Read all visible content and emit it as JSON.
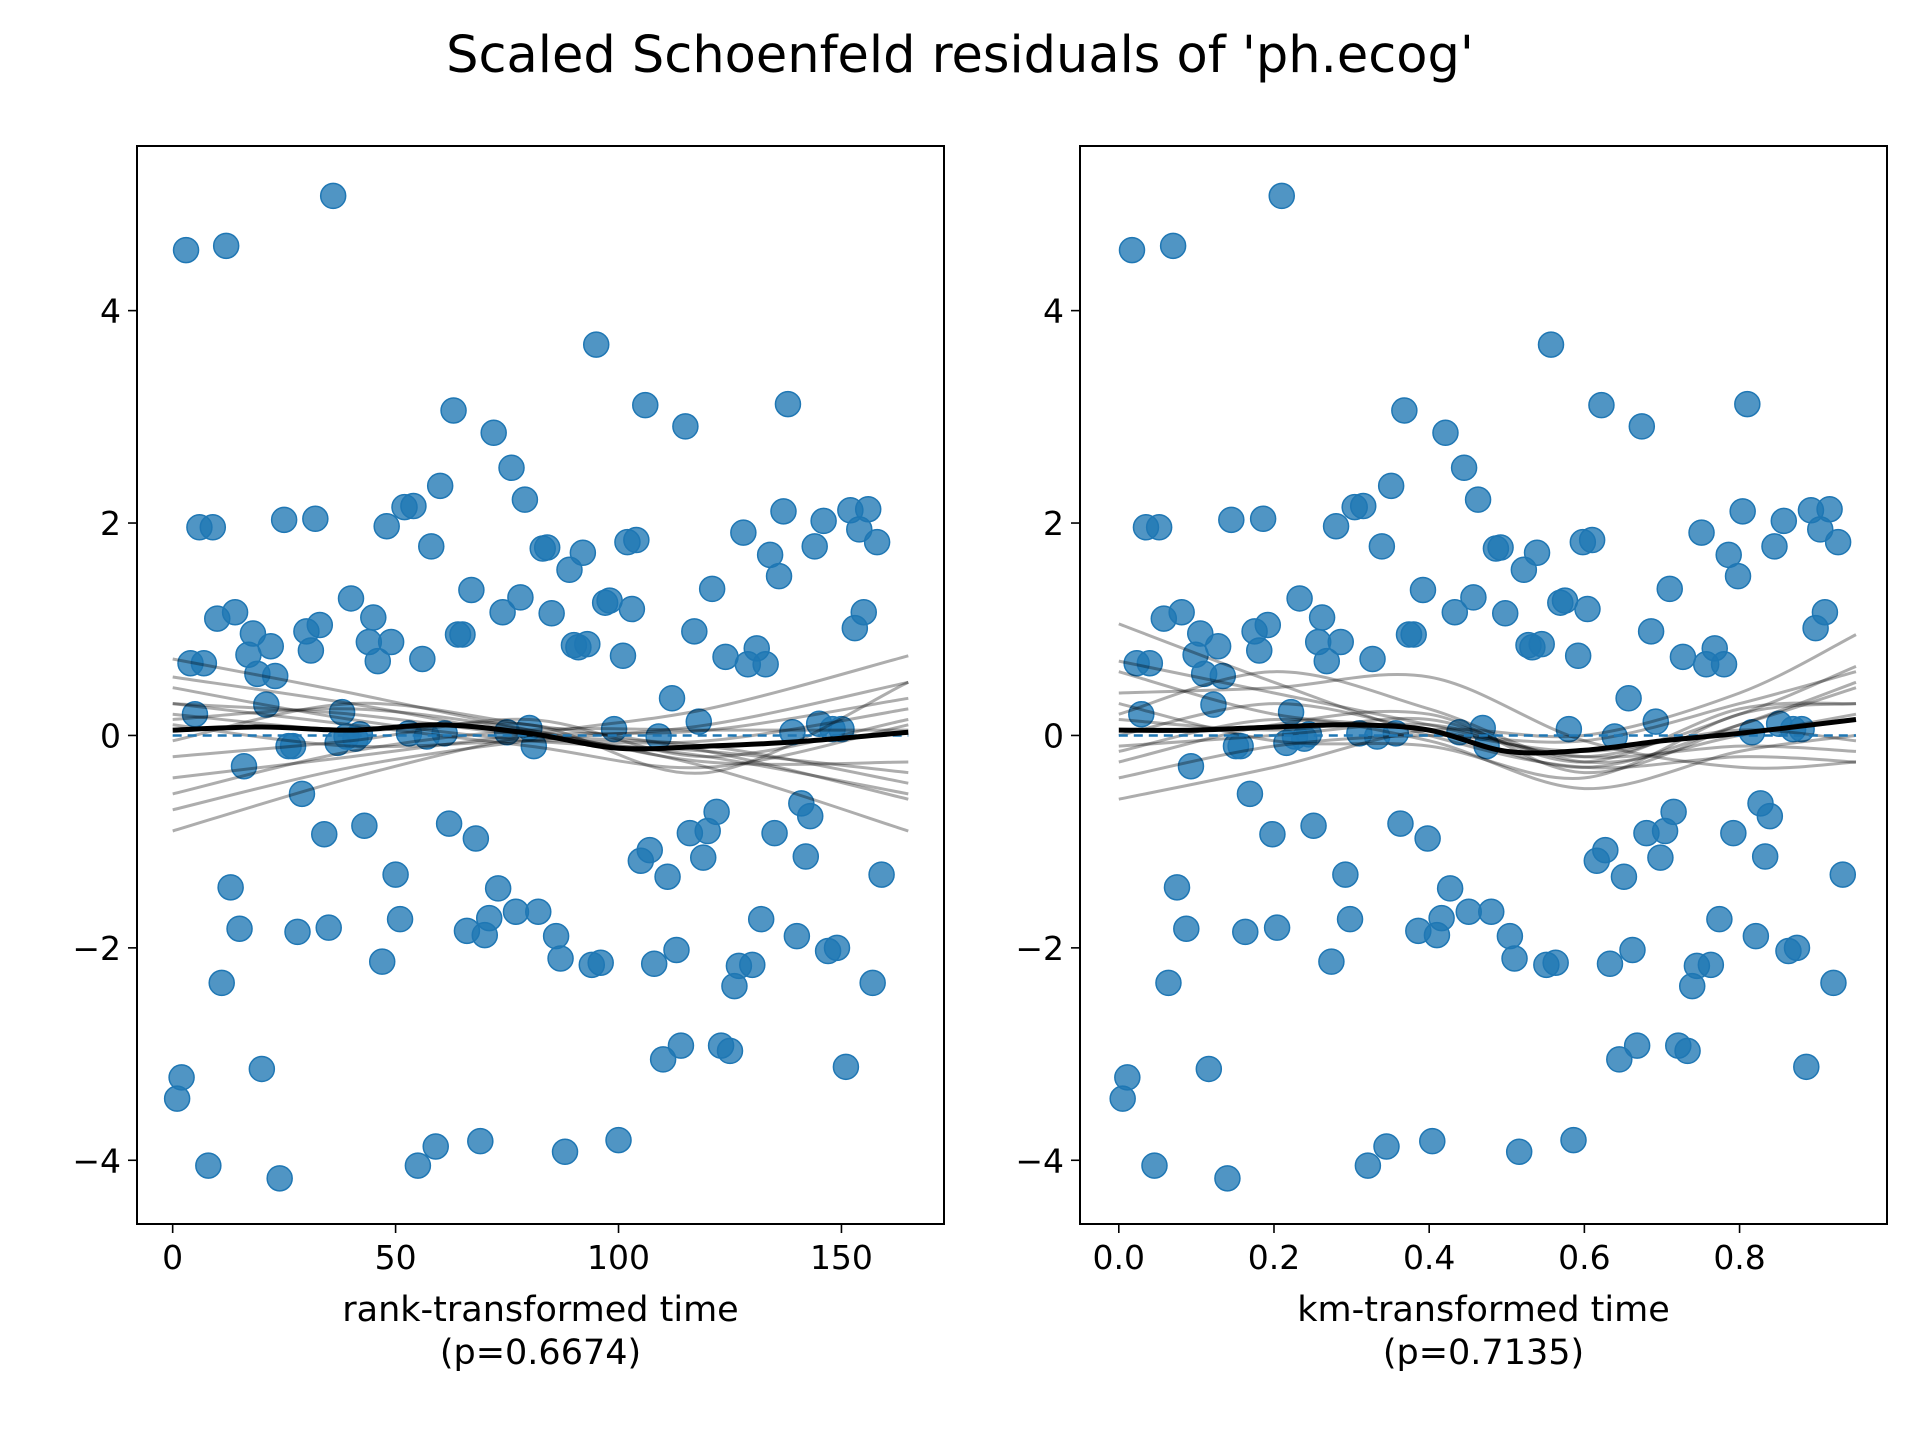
{
  "title": "Scaled Schoenfeld residuals of 'ph.ecog'",
  "residuals": [
    -3.42,
    -3.22,
    4.57,
    0.68,
    0.2,
    1.96,
    0.68,
    -4.05,
    1.96,
    1.1,
    -2.33,
    4.61,
    -1.43,
    1.16,
    -1.82,
    -0.29,
    0.76,
    0.96,
    0.58,
    -3.14,
    0.29,
    0.84,
    0.56,
    -4.17,
    2.03,
    -0.1,
    -0.1,
    -1.85,
    -0.55,
    0.98,
    0.8,
    2.04,
    1.04,
    -0.93,
    -1.81,
    5.08,
    -0.07,
    0.22,
    -0.01,
    1.29,
    -0.03,
    0.01,
    -0.85,
    0.88,
    1.11,
    0.7,
    -2.13,
    1.97,
    0.88,
    -1.31,
    -1.73,
    2.15,
    0.02,
    2.16,
    -4.05,
    0.72,
    -0.01,
    1.78,
    -3.87,
    2.35,
    0.02,
    -0.83,
    3.06,
    0.95,
    0.95,
    -1.84,
    1.37,
    -0.97,
    -3.82,
    -1.88,
    -1.72,
    2.85,
    -1.44,
    1.16,
    0.03,
    2.52,
    -1.66,
    1.3,
    2.22,
    0.07,
    -0.1,
    -1.66,
    1.76,
    1.77,
    1.15,
    -1.89,
    -2.1,
    -3.92,
    1.56,
    0.85,
    0.83,
    1.72,
    0.86,
    -2.16,
    3.68,
    -2.14,
    1.25,
    1.27,
    0.06,
    -3.81,
    0.75,
    1.82,
    1.19,
    1.84,
    -1.18,
    3.11,
    -1.08,
    -2.15,
    -0.01,
    -3.05,
    -1.33,
    0.35,
    -2.02,
    -2.92,
    2.91,
    -0.92,
    0.98,
    0.13,
    -1.15,
    -0.9,
    1.38,
    -0.72,
    -2.92,
    0.74,
    -2.97,
    -2.36,
    -2.17,
    1.91,
    0.67,
    -2.16,
    0.82,
    -1.73,
    0.67,
    1.7,
    -0.92,
    1.5,
    2.11,
    3.12,
    0.03,
    -1.89,
    -0.64,
    -1.14,
    -0.76,
    1.78,
    0.11,
    2.02,
    -2.03,
    0.06,
    -2.0,
    0.06,
    -3.12,
    2.12,
    1.01,
    1.94,
    1.16,
    2.13,
    -2.33,
    1.82,
    -1.31
  ],
  "chart_data": [
    {
      "type": "scatter",
      "xlabel": "rank-transformed time",
      "p_label": "(p=0.6674)",
      "xlim": [
        -8,
        173
      ],
      "ylim": [
        -4.6,
        5.55
      ],
      "xticks": [
        0,
        50,
        100,
        150
      ],
      "xtick_labels": [
        "0",
        "50",
        "100",
        "150"
      ],
      "yticks": [
        -4,
        -2,
        0,
        2,
        4
      ],
      "ytick_labels": [
        "−4",
        "−2",
        "0",
        "2",
        "4"
      ],
      "x": [
        1,
        2,
        3,
        4,
        5,
        6,
        7,
        8,
        9,
        10,
        11,
        12,
        13,
        14,
        15,
        16,
        17,
        18,
        19,
        20,
        21,
        22,
        23,
        24,
        25,
        26,
        27,
        28,
        29,
        30,
        31,
        32,
        33,
        34,
        35,
        36,
        37,
        38,
        39,
        40,
        41,
        42,
        43,
        44,
        45,
        46,
        47,
        48,
        49,
        50,
        51,
        52,
        53,
        54,
        55,
        56,
        57,
        58,
        59,
        60,
        61,
        62,
        63,
        64,
        65,
        66,
        67,
        68,
        69,
        70,
        71,
        72,
        73,
        74,
        75,
        76,
        77,
        78,
        79,
        80,
        81,
        82,
        83,
        84,
        85,
        86,
        87,
        88,
        89,
        90,
        91,
        92,
        93,
        94,
        95,
        96,
        97,
        98,
        99,
        100,
        101,
        102,
        103,
        104,
        105,
        106,
        107,
        108,
        109,
        110,
        111,
        112,
        113,
        114,
        115,
        116,
        117,
        118,
        119,
        120,
        121,
        122,
        123,
        124,
        125,
        126,
        127,
        128,
        129,
        130,
        131,
        132,
        133,
        134,
        135,
        136,
        137,
        138,
        139,
        140,
        141,
        142,
        143,
        144,
        145,
        146,
        147,
        148,
        149,
        150,
        151,
        152,
        153,
        154,
        155,
        156,
        157,
        158,
        159,
        160,
        161,
        162,
        163,
        164,
        165
      ],
      "fit": {
        "x": [
          0,
          20,
          40,
          60,
          80,
          100,
          120,
          140,
          165
        ],
        "y": [
          0.05,
          0.08,
          0.05,
          0.1,
          0.02,
          -0.12,
          -0.1,
          -0.06,
          0.03
        ]
      },
      "reference_y": 0,
      "bootstrap": [
        {
          "x": [
            0,
            40,
            80,
            120,
            165
          ],
          "y": [
            0.72,
            0.4,
            0.05,
            -0.3,
            -0.9
          ]
        },
        {
          "x": [
            0,
            40,
            80,
            120,
            165
          ],
          "y": [
            -0.9,
            -0.4,
            0.0,
            0.25,
            0.75
          ]
        },
        {
          "x": [
            0,
            40,
            80,
            120,
            165
          ],
          "y": [
            0.55,
            0.3,
            0.0,
            -0.2,
            -0.55
          ]
        },
        {
          "x": [
            0,
            40,
            80,
            120,
            165
          ],
          "y": [
            -0.7,
            -0.3,
            -0.05,
            0.1,
            0.5
          ]
        },
        {
          "x": [
            0,
            40,
            80,
            120,
            165
          ],
          "y": [
            0.3,
            0.2,
            0.0,
            -0.1,
            -0.45
          ]
        },
        {
          "x": [
            0,
            40,
            80,
            120,
            165
          ],
          "y": [
            -0.4,
            -0.2,
            0.0,
            0.05,
            0.35
          ]
        },
        {
          "x": [
            0,
            40,
            80,
            120,
            165
          ],
          "y": [
            0.15,
            0.25,
            0.05,
            -0.25,
            -0.25
          ]
        },
        {
          "x": [
            0,
            40,
            80,
            120,
            165
          ],
          "y": [
            -0.2,
            -0.05,
            0.15,
            -0.2,
            0.15
          ]
        },
        {
          "x": [
            0,
            40,
            80,
            120,
            165
          ],
          "y": [
            0.3,
            0.1,
            -0.1,
            -0.3,
            0.1
          ]
        },
        {
          "x": [
            0,
            40,
            80,
            120,
            165
          ],
          "y": [
            -0.05,
            0.3,
            0.1,
            -0.15,
            -0.6
          ]
        },
        {
          "x": [
            0,
            40,
            80,
            120,
            165
          ],
          "y": [
            0.1,
            -0.1,
            -0.05,
            -0.05,
            0.25
          ]
        },
        {
          "x": [
            0,
            40,
            80,
            120,
            165
          ],
          "y": [
            0.45,
            0.15,
            -0.05,
            -0.15,
            -0.35
          ]
        },
        {
          "x": [
            0,
            40,
            80,
            120,
            165
          ],
          "y": [
            -0.55,
            -0.15,
            0.05,
            0.05,
            0.05
          ]
        },
        {
          "x": [
            0,
            40,
            80,
            120,
            165
          ],
          "y": [
            0.2,
            0.05,
            0.1,
            -0.35,
            0.5
          ]
        }
      ]
    },
    {
      "type": "scatter",
      "xlabel": "km-transformed time",
      "p_label": "(p=0.7135)",
      "xlim": [
        -0.05,
        0.99
      ],
      "ylim": [
        -4.6,
        5.55
      ],
      "xticks": [
        0.0,
        0.2,
        0.4,
        0.6,
        0.8
      ],
      "xtick_labels": [
        "0.0",
        "0.2",
        "0.4",
        "0.6",
        "0.8"
      ],
      "yticks": [
        -4,
        -2,
        0,
        2,
        4
      ],
      "ytick_labels": [
        "−4",
        "−2",
        "0",
        "2",
        "4"
      ],
      "x": [
        0.005,
        0.011,
        0.017,
        0.023,
        0.029,
        0.035,
        0.04,
        0.046,
        0.052,
        0.058,
        0.064,
        0.07,
        0.075,
        0.081,
        0.087,
        0.093,
        0.099,
        0.105,
        0.11,
        0.116,
        0.122,
        0.128,
        0.134,
        0.14,
        0.145,
        0.151,
        0.157,
        0.163,
        0.169,
        0.175,
        0.181,
        0.186,
        0.192,
        0.198,
        0.204,
        0.21,
        0.216,
        0.222,
        0.227,
        0.233,
        0.239,
        0.245,
        0.251,
        0.257,
        0.262,
        0.268,
        0.274,
        0.28,
        0.286,
        0.292,
        0.298,
        0.304,
        0.31,
        0.315,
        0.321,
        0.327,
        0.333,
        0.339,
        0.345,
        0.351,
        0.357,
        0.363,
        0.368,
        0.374,
        0.38,
        0.386,
        0.392,
        0.398,
        0.404,
        0.41,
        0.416,
        0.421,
        0.427,
        0.433,
        0.439,
        0.445,
        0.451,
        0.457,
        0.463,
        0.469,
        0.474,
        0.48,
        0.486,
        0.492,
        0.498,
        0.504,
        0.51,
        0.516,
        0.522,
        0.528,
        0.533,
        0.539,
        0.545,
        0.551,
        0.557,
        0.563,
        0.569,
        0.575,
        0.58,
        0.586,
        0.592,
        0.598,
        0.604,
        0.61,
        0.616,
        0.622,
        0.627,
        0.633,
        0.639,
        0.645,
        0.651,
        0.657,
        0.662,
        0.668,
        0.674,
        0.68,
        0.686,
        0.692,
        0.698,
        0.704,
        0.71,
        0.715,
        0.721,
        0.727,
        0.733,
        0.739,
        0.745,
        0.751,
        0.757,
        0.763,
        0.768,
        0.774,
        0.78,
        0.786,
        0.792,
        0.798,
        0.804,
        0.81,
        0.816,
        0.821,
        0.827,
        0.833,
        0.839,
        0.845,
        0.851,
        0.857,
        0.863,
        0.869,
        0.874,
        0.88,
        0.886,
        0.892,
        0.898,
        0.904,
        0.91,
        0.916,
        0.921,
        0.927,
        0.933,
        0.939,
        0.944,
        0.948,
        0.95
      ],
      "fit": {
        "x": [
          0,
          0.1,
          0.2,
          0.3,
          0.4,
          0.5,
          0.6,
          0.7,
          0.8,
          0.95
        ],
        "y": [
          0.05,
          0.05,
          0.08,
          0.1,
          0.05,
          -0.15,
          -0.14,
          -0.05,
          0.02,
          0.15
        ]
      },
      "reference_y": 0,
      "bootstrap": [
        {
          "x": [
            0,
            0.2,
            0.4,
            0.6,
            0.8,
            0.95
          ],
          "y": [
            1.05,
            0.5,
            0.0,
            -0.3,
            -0.2,
            -0.25
          ]
        },
        {
          "x": [
            0,
            0.2,
            0.4,
            0.6,
            0.8,
            0.95
          ],
          "y": [
            -0.6,
            -0.3,
            0.05,
            0.0,
            0.4,
            0.95
          ]
        },
        {
          "x": [
            0,
            0.2,
            0.4,
            0.6,
            0.8,
            0.95
          ],
          "y": [
            0.7,
            0.4,
            0.1,
            -0.2,
            -0.1,
            -0.15
          ]
        },
        {
          "x": [
            0,
            0.2,
            0.4,
            0.6,
            0.8,
            0.95
          ],
          "y": [
            -0.4,
            -0.1,
            0.0,
            -0.05,
            0.3,
            0.6
          ]
        },
        {
          "x": [
            0,
            0.2,
            0.4,
            0.6,
            0.8,
            0.95
          ],
          "y": [
            0.4,
            0.45,
            0.55,
            -0.05,
            -0.3,
            -0.25
          ]
        },
        {
          "x": [
            0,
            0.2,
            0.4,
            0.6,
            0.8,
            0.95
          ],
          "y": [
            -0.25,
            0.1,
            0.2,
            -0.35,
            0.1,
            0.5
          ]
        },
        {
          "x": [
            0,
            0.2,
            0.4,
            0.6,
            0.8,
            0.95
          ],
          "y": [
            0.2,
            0.6,
            0.25,
            -0.25,
            0.0,
            0.2
          ]
        },
        {
          "x": [
            0,
            0.2,
            0.4,
            0.6,
            0.8,
            0.95
          ],
          "y": [
            -0.1,
            0.0,
            0.1,
            -0.2,
            0.2,
            0.65
          ]
        },
        {
          "x": [
            0,
            0.2,
            0.4,
            0.6,
            0.8,
            0.95
          ],
          "y": [
            0.3,
            -0.05,
            -0.1,
            -0.4,
            0.2,
            0.3
          ]
        },
        {
          "x": [
            0,
            0.2,
            0.4,
            0.6,
            0.8,
            0.95
          ],
          "y": [
            0.0,
            0.3,
            0.05,
            -0.15,
            0.05,
            -0.05
          ]
        },
        {
          "x": [
            0,
            0.2,
            0.4,
            0.6,
            0.8,
            0.95
          ],
          "y": [
            -0.15,
            0.15,
            -0.05,
            -0.5,
            -0.15,
            0.0
          ]
        },
        {
          "x": [
            0,
            0.2,
            0.4,
            0.6,
            0.8,
            0.95
          ],
          "y": [
            0.6,
            0.2,
            0.05,
            -0.3,
            0.1,
            0.45
          ]
        },
        {
          "x": [
            0,
            0.2,
            0.4,
            0.6,
            0.8,
            0.95
          ],
          "y": [
            0.15,
            0.05,
            0.15,
            -0.25,
            0.25,
            0.3
          ]
        }
      ]
    }
  ]
}
